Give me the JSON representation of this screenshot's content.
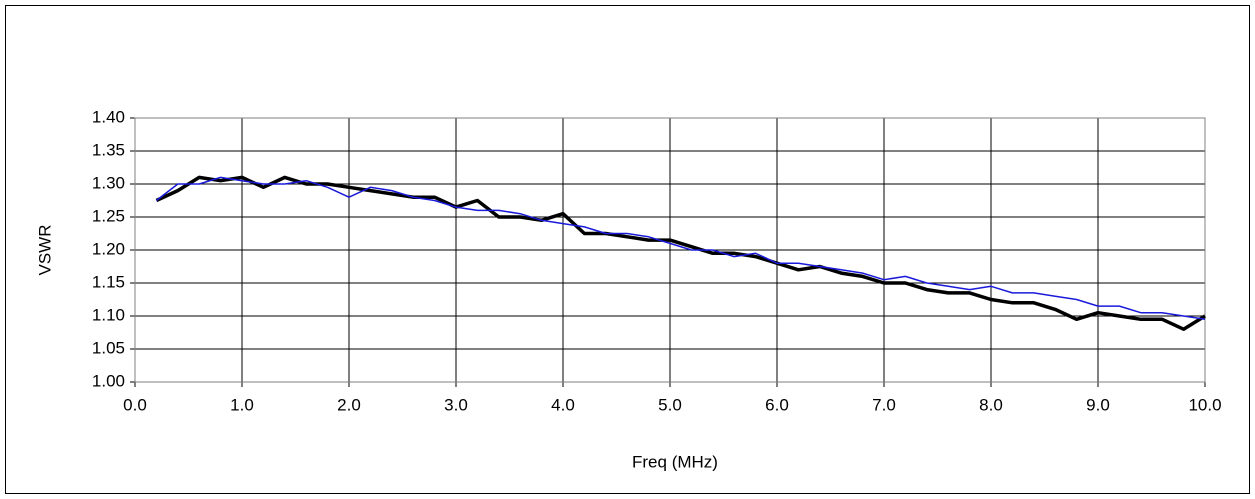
{
  "chart_data": {
    "type": "line",
    "xlabel": "Freq (MHz)",
    "ylabel": "VSWR",
    "xlim": [
      0,
      10
    ],
    "ylim": [
      1,
      1.4
    ],
    "xticks": [
      {
        "value": 0,
        "label": "0.0"
      },
      {
        "value": 1,
        "label": "1.0"
      },
      {
        "value": 2,
        "label": "2.0"
      },
      {
        "value": 3,
        "label": "3.0"
      },
      {
        "value": 4,
        "label": "4.0"
      },
      {
        "value": 5,
        "label": "5.0"
      },
      {
        "value": 6,
        "label": "6.0"
      },
      {
        "value": 7,
        "label": "7.0"
      },
      {
        "value": 8,
        "label": "8.0"
      },
      {
        "value": 9,
        "label": "9.0"
      },
      {
        "value": 10,
        "label": "10.0"
      }
    ],
    "yticks": [
      {
        "value": 1,
        "label": "1.00"
      },
      {
        "value": 1.05,
        "label": "1.05"
      },
      {
        "value": 1.1,
        "label": "1.10"
      },
      {
        "value": 1.15,
        "label": "1.15"
      },
      {
        "value": 1.2,
        "label": "1.20"
      },
      {
        "value": 1.25,
        "label": "1.25"
      },
      {
        "value": 1.3,
        "label": "1.30"
      },
      {
        "value": 1.35,
        "label": "1.35"
      },
      {
        "value": 1.4,
        "label": "1.40"
      }
    ],
    "grid": true,
    "x": [
      0.2,
      0.4,
      0.6,
      0.8,
      1.0,
      1.2,
      1.4,
      1.6,
      1.8,
      2.0,
      2.2,
      2.4,
      2.6,
      2.8,
      3.0,
      3.2,
      3.4,
      3.6,
      3.8,
      4.0,
      4.2,
      4.4,
      4.6,
      4.8,
      5.0,
      5.2,
      5.4,
      5.6,
      5.8,
      6.0,
      6.2,
      6.4,
      6.6,
      6.8,
      7.0,
      7.2,
      7.4,
      7.6,
      7.8,
      8.0,
      8.2,
      8.4,
      8.6,
      8.8,
      9.0,
      9.2,
      9.4,
      9.6,
      9.8,
      10.0
    ],
    "series": [
      {
        "color": "#000000",
        "linewidth": 3.5,
        "values": [
          1.275,
          1.29,
          1.31,
          1.305,
          1.31,
          1.295,
          1.31,
          1.3,
          1.3,
          1.295,
          1.29,
          1.285,
          1.28,
          1.28,
          1.265,
          1.275,
          1.25,
          1.25,
          1.245,
          1.255,
          1.225,
          1.225,
          1.22,
          1.215,
          1.215,
          1.205,
          1.195,
          1.195,
          1.19,
          1.18,
          1.17,
          1.175,
          1.165,
          1.16,
          1.15,
          1.15,
          1.14,
          1.135,
          1.135,
          1.125,
          1.12,
          1.12,
          1.11,
          1.095,
          1.105,
          1.1,
          1.095,
          1.095,
          1.08,
          1.1
        ]
      },
      {
        "color": "#1a1adb",
        "linewidth": 1.5,
        "values": [
          1.275,
          1.3,
          1.3,
          1.31,
          1.305,
          1.3,
          1.3,
          1.305,
          1.295,
          1.28,
          1.295,
          1.29,
          1.28,
          1.275,
          1.265,
          1.26,
          1.26,
          1.255,
          1.245,
          1.24,
          1.235,
          1.225,
          1.225,
          1.22,
          1.21,
          1.2,
          1.2,
          1.19,
          1.195,
          1.18,
          1.18,
          1.175,
          1.17,
          1.165,
          1.155,
          1.16,
          1.15,
          1.145,
          1.14,
          1.145,
          1.135,
          1.135,
          1.13,
          1.125,
          1.115,
          1.115,
          1.105,
          1.105,
          1.1,
          1.095
        ]
      }
    ]
  }
}
